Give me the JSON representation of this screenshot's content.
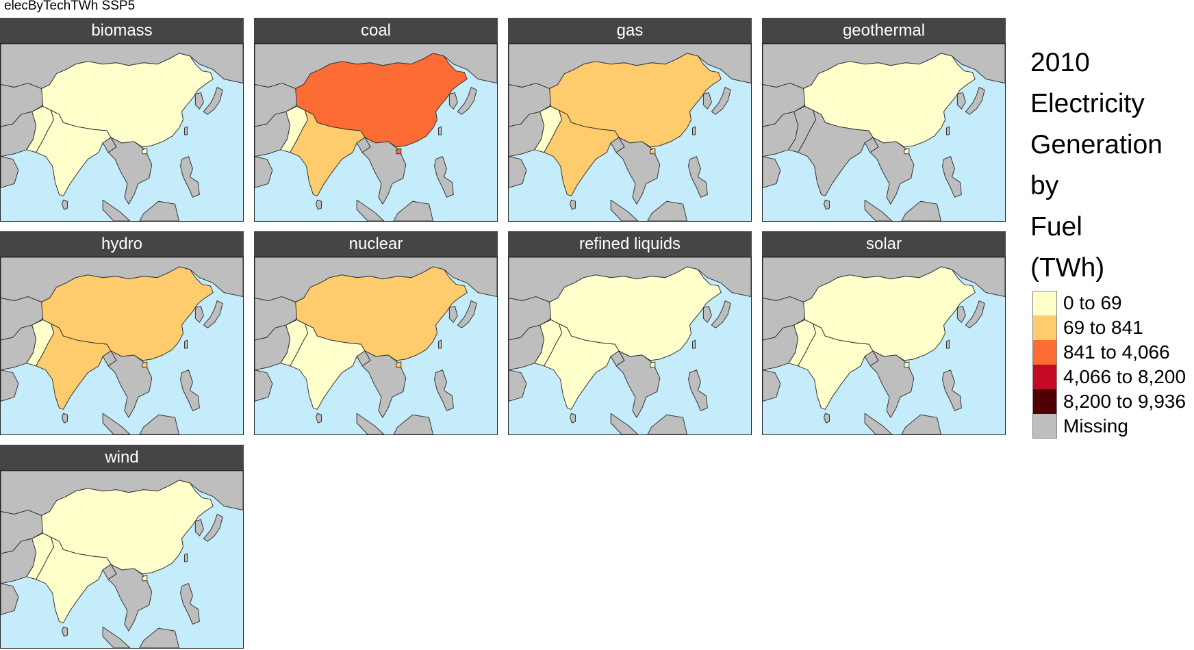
{
  "title": "elecByTechTWh SSP5",
  "legend": {
    "title_lines": [
      "2010",
      "Electricity",
      "Generation",
      "by",
      "Fuel",
      "(TWh)"
    ],
    "classes": [
      {
        "label": "0 to 69",
        "color": "#FFFFCC"
      },
      {
        "label": "69 to 841",
        "color": "#FECC6C"
      },
      {
        "label": "841 to 4,066",
        "color": "#FD6C34"
      },
      {
        "label": "4,066 to 8,200",
        "color": "#C40A22"
      },
      {
        "label": "8,200 to 9,936",
        "color": "#4E0004"
      },
      {
        "label": "Missing",
        "color": "#BEBEBE"
      }
    ]
  },
  "map_colors": {
    "ocean": "#C5ECFA",
    "missing": "#BEBEBE",
    "border": "#333333"
  },
  "panels": [
    {
      "fuel": "biomass",
      "china": "0 to 69",
      "india": "0 to 69",
      "pakistan": "0 to 69"
    },
    {
      "fuel": "coal",
      "china": "841 to 4,066",
      "india": "69 to 841",
      "pakistan": "0 to 69"
    },
    {
      "fuel": "gas",
      "china": "69 to 841",
      "india": "69 to 841",
      "pakistan": "0 to 69"
    },
    {
      "fuel": "geothermal",
      "china": "0 to 69",
      "india": "Missing",
      "pakistan": "Missing"
    },
    {
      "fuel": "hydro",
      "china": "69 to 841",
      "india": "69 to 841",
      "pakistan": "0 to 69"
    },
    {
      "fuel": "nuclear",
      "china": "69 to 841",
      "india": "0 to 69",
      "pakistan": "0 to 69"
    },
    {
      "fuel": "refined liquids",
      "china": "0 to 69",
      "india": "0 to 69",
      "pakistan": "0 to 69"
    },
    {
      "fuel": "solar",
      "china": "0 to 69",
      "india": "0 to 69",
      "pakistan": "0 to 69"
    },
    {
      "fuel": "wind",
      "china": "0 to 69",
      "india": "0 to 69",
      "pakistan": "0 to 69"
    }
  ]
}
